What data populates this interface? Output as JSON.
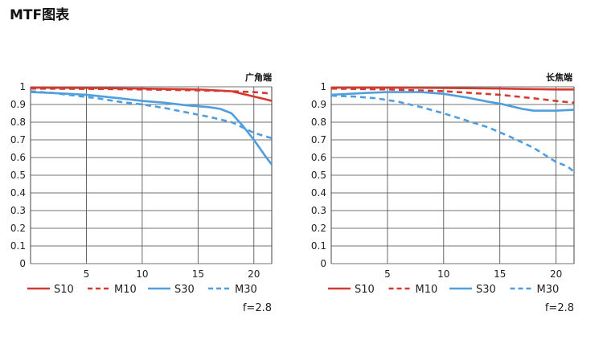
{
  "page_title": "MTF图表",
  "colors": {
    "S10": "#d63a2e",
    "M10": "#d63a2e",
    "S30": "#4f9ee0",
    "M30": "#4f9ee0",
    "grid": "#444444"
  },
  "chart_data": [
    {
      "type": "line",
      "title": "广角端",
      "aperture_label": "f=2.8",
      "xlim": [
        0,
        21.6
      ],
      "ylim": [
        0,
        1
      ],
      "xticks": [
        "5",
        "10",
        "15",
        "20"
      ],
      "yticks": [
        "1",
        "0.9",
        "0.8",
        "0.7",
        "0.6",
        "0.5",
        "0.4",
        "0.3",
        "0.2",
        "0.1",
        "0"
      ],
      "grid": true,
      "legend_position": "bottom",
      "series": [
        {
          "name": "S10",
          "style": "solid",
          "x": [
            0,
            5,
            10,
            15,
            18,
            19,
            20,
            21,
            21.6
          ],
          "y": [
            0.995,
            0.993,
            0.99,
            0.985,
            0.975,
            0.96,
            0.945,
            0.93,
            0.92
          ]
        },
        {
          "name": "M10",
          "style": "dashed",
          "x": [
            0,
            5,
            10,
            15,
            18,
            20,
            21,
            21.6
          ],
          "y": [
            0.99,
            0.988,
            0.985,
            0.98,
            0.975,
            0.97,
            0.965,
            0.96
          ]
        },
        {
          "name": "S30",
          "style": "solid",
          "x": [
            0,
            2,
            5,
            8,
            10,
            12,
            14,
            15,
            16,
            17,
            18,
            19,
            20,
            21,
            21.6
          ],
          "y": [
            0.97,
            0.965,
            0.955,
            0.935,
            0.92,
            0.91,
            0.895,
            0.89,
            0.885,
            0.875,
            0.85,
            0.78,
            0.7,
            0.61,
            0.56
          ]
        },
        {
          "name": "M30",
          "style": "dashed",
          "x": [
            0,
            2,
            4,
            6,
            8,
            10,
            12,
            14,
            16,
            18,
            19,
            20,
            21,
            21.6
          ],
          "y": [
            0.975,
            0.965,
            0.95,
            0.935,
            0.915,
            0.9,
            0.88,
            0.855,
            0.83,
            0.8,
            0.77,
            0.74,
            0.72,
            0.71
          ]
        }
      ]
    },
    {
      "type": "line",
      "title": "长焦端",
      "aperture_label": "f=2.8",
      "xlim": [
        0,
        21.6
      ],
      "ylim": [
        0,
        1
      ],
      "xticks": [
        "5",
        "10",
        "15",
        "20"
      ],
      "yticks": [
        "1",
        "0.9",
        "0.8",
        "0.7",
        "0.6",
        "0.5",
        "0.4",
        "0.3",
        "0.2",
        "0.1",
        "0"
      ],
      "grid": true,
      "legend_position": "bottom",
      "series": [
        {
          "name": "S10",
          "style": "solid",
          "x": [
            0,
            5,
            10,
            15,
            20,
            21.6
          ],
          "y": [
            0.995,
            0.995,
            0.993,
            0.99,
            0.985,
            0.985
          ]
        },
        {
          "name": "M10",
          "style": "dashed",
          "x": [
            0,
            5,
            10,
            15,
            18,
            20,
            21.6
          ],
          "y": [
            0.99,
            0.985,
            0.975,
            0.955,
            0.935,
            0.92,
            0.91
          ]
        },
        {
          "name": "S30",
          "style": "solid",
          "x": [
            0,
            3,
            5,
            8,
            10,
            12,
            14,
            15,
            16,
            17,
            18,
            19,
            20,
            21.6
          ],
          "y": [
            0.955,
            0.965,
            0.97,
            0.97,
            0.96,
            0.94,
            0.915,
            0.905,
            0.89,
            0.875,
            0.865,
            0.865,
            0.865,
            0.87
          ]
        },
        {
          "name": "M30",
          "style": "dashed",
          "x": [
            0,
            2,
            4,
            6,
            8,
            10,
            12,
            14,
            16,
            18,
            19,
            20,
            21,
            21.6
          ],
          "y": [
            0.95,
            0.945,
            0.935,
            0.915,
            0.885,
            0.85,
            0.81,
            0.77,
            0.715,
            0.655,
            0.615,
            0.575,
            0.55,
            0.52
          ]
        }
      ]
    }
  ]
}
